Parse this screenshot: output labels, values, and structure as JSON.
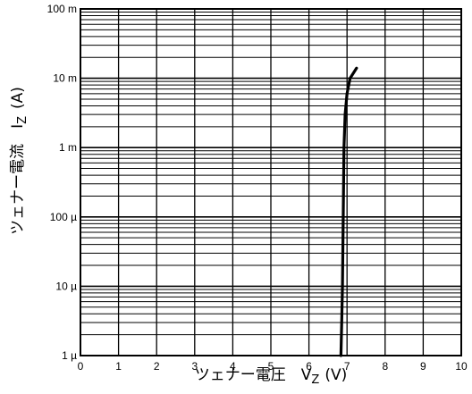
{
  "chart_data": {
    "type": "line",
    "xlabel": "ツェナー電圧　V",
    "xlabel_sub": "Z",
    "xlabel_unit": "(V)",
    "ylabel": "ツェナー電流　I",
    "ylabel_sub": "Z",
    "ylabel_unit": "(A)",
    "x_ticks": [
      "0",
      "1",
      "2",
      "3",
      "4",
      "5",
      "6",
      "7",
      "8",
      "9",
      "10"
    ],
    "y_ticks": [
      "1 µ",
      "10 µ",
      "100 µ",
      "1 m",
      "10 m",
      "100 m"
    ],
    "xlim": [
      0,
      10
    ],
    "ylim": [
      1e-06,
      0.1
    ],
    "y_scale": "log",
    "grid": true,
    "series": [
      {
        "color": "#000000",
        "points": [
          {
            "x": 6.84,
            "y": 1e-06
          },
          {
            "x": 6.86,
            "y": 3e-06
          },
          {
            "x": 6.88,
            "y": 1e-05
          },
          {
            "x": 6.9,
            "y": 0.0001
          },
          {
            "x": 6.92,
            "y": 0.001
          },
          {
            "x": 6.95,
            "y": 0.003
          },
          {
            "x": 7.0,
            "y": 0.006
          },
          {
            "x": 7.08,
            "y": 0.01
          },
          {
            "x": 7.25,
            "y": 0.014
          }
        ]
      }
    ]
  }
}
